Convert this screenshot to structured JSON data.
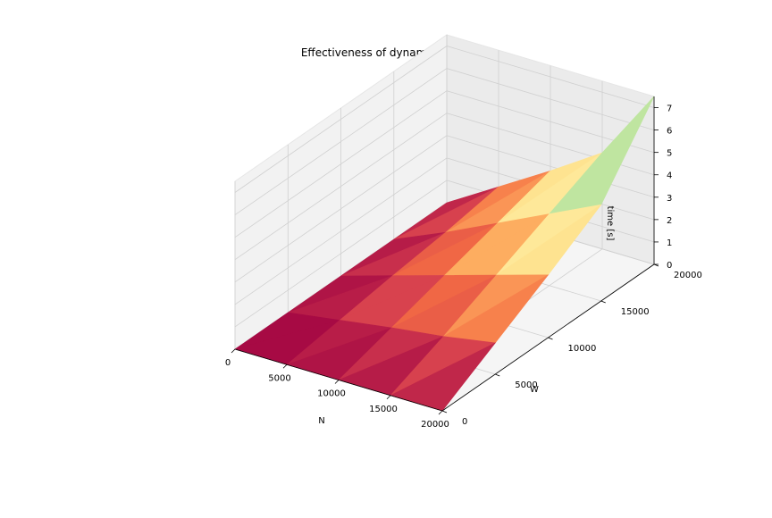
{
  "chart_data": {
    "type": "surface3d",
    "title": "Effectiveness of dynamic approach",
    "xlabel": "N",
    "ylabel": "W",
    "zlabel": "time [s]",
    "xlim": [
      0,
      20000
    ],
    "ylim": [
      0,
      20000
    ],
    "zlim": [
      0,
      7.5
    ],
    "x_ticks": [
      "0",
      "5000",
      "10000",
      "15000",
      "20000"
    ],
    "y_ticks": [
      "0",
      "5000",
      "10000",
      "15000",
      "20000"
    ],
    "z_ticks": [
      "0",
      "1",
      "2",
      "3",
      "4",
      "5",
      "6",
      "7"
    ],
    "colormap": "Spectral",
    "grid": true,
    "x": [
      0,
      5000,
      10000,
      15000,
      20000
    ],
    "y": [
      0,
      5000,
      10000,
      15000,
      20000
    ],
    "z": [
      [
        0.0,
        0.0,
        0.0,
        0.0,
        0.0
      ],
      [
        0.0,
        0.35,
        0.7,
        1.0,
        1.4
      ],
      [
        0.0,
        0.7,
        1.4,
        2.1,
        2.8
      ],
      [
        0.0,
        1.0,
        2.1,
        3.2,
        4.3
      ],
      [
        0.0,
        1.4,
        2.8,
        4.3,
        7.5
      ]
    ]
  }
}
